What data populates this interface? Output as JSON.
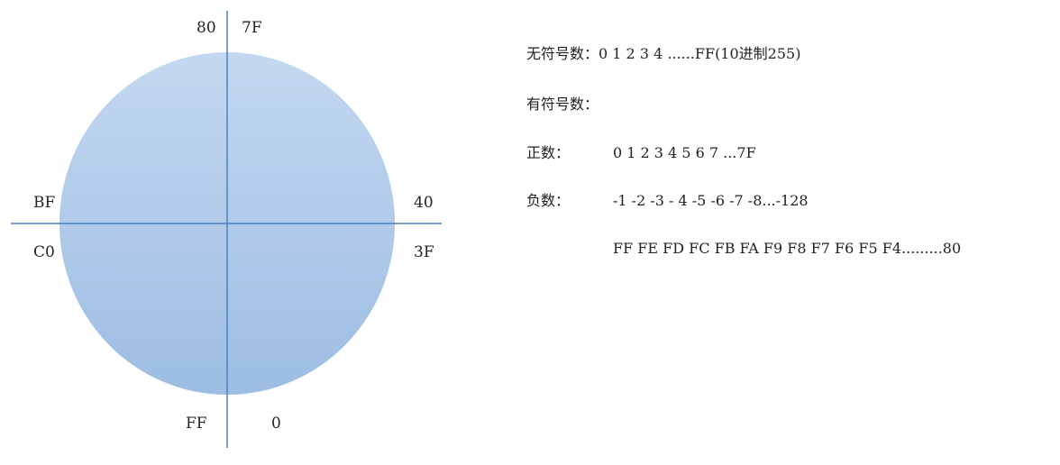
{
  "diagram": {
    "fill_top": "#c3d8f0",
    "fill_bottom": "#9dbde3",
    "axis_color": "#4f81bd",
    "labels": {
      "top_left": "80",
      "top_right": "7F",
      "left_upper": "BF",
      "left_lower": "C0",
      "right_upper": "40",
      "right_lower": "3F",
      "bottom_left": "FF",
      "bottom_right": "0"
    }
  },
  "notes": {
    "unsigned_key": "无符号数：",
    "unsigned_value": "0 1 2 3 4 ......FF(10进制255)",
    "signed_key": "有符号数：",
    "positive_key": "正数：",
    "positive_value": "0 1 2 3 4 5 6 7 ...7F",
    "negative_key": "负数：",
    "negative_value": "-1 -2 -3 - 4 -5 -6 -7 -8...-128",
    "hex_sequence": "FF FE FD FC FB FA F9 F8 F7 F6 F5 F4.........80"
  }
}
